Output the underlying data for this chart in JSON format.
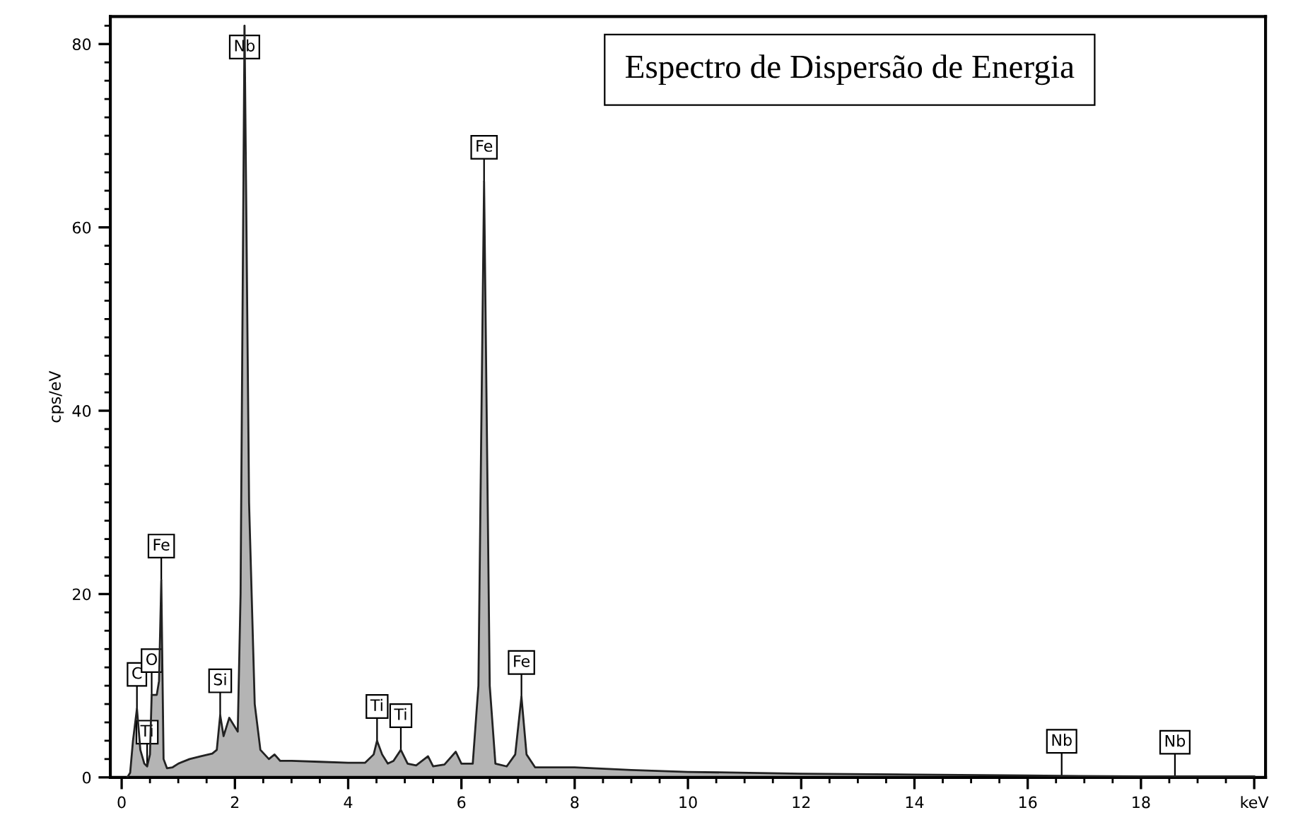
{
  "chart_data": {
    "type": "area",
    "title": "Espectro de Dispersão de Energia",
    "ylabel": "cps/eV",
    "x": [
      0.1,
      0.15,
      0.2,
      0.27,
      0.33,
      0.4,
      0.45,
      0.5,
      0.53,
      0.62,
      0.66,
      0.7,
      0.74,
      0.8,
      0.9,
      1.0,
      1.2,
      1.4,
      1.6,
      1.68,
      1.74,
      1.8,
      1.9,
      2.0,
      2.05,
      2.1,
      2.17,
      2.25,
      2.35,
      2.45,
      2.6,
      2.7,
      2.8,
      3.0,
      3.5,
      4.0,
      4.3,
      4.45,
      4.51,
      4.6,
      4.7,
      4.8,
      4.93,
      5.05,
      5.2,
      5.41,
      5.5,
      5.7,
      5.9,
      6.0,
      6.2,
      6.3,
      6.4,
      6.5,
      6.6,
      6.8,
      6.95,
      7.06,
      7.15,
      7.3,
      8,
      9,
      10,
      12,
      14,
      16,
      18,
      20
    ],
    "series": [
      {
        "color": "#b4b4b4",
        "values": [
          0,
          0.5,
          4,
          7.5,
          3,
          1.5,
          1.2,
          2.5,
          9,
          9,
          10.5,
          21.5,
          2,
          1,
          1.1,
          1.5,
          2.0,
          2.3,
          2.6,
          3.0,
          6.8,
          4.5,
          6.5,
          5.5,
          5,
          20,
          82,
          30,
          8,
          3,
          2.0,
          2.5,
          1.8,
          1.8,
          1.7,
          1.6,
          1.6,
          2.5,
          4.0,
          2.5,
          1.5,
          1.8,
          3.0,
          1.5,
          1.3,
          2.3,
          1.2,
          1.4,
          2.8,
          1.5,
          1.5,
          10,
          65,
          10,
          1.5,
          1.2,
          2.5,
          8.8,
          2.5,
          1.1,
          1.1,
          0.8,
          0.6,
          0.4,
          0.3,
          0.2,
          0.1,
          0.1
        ]
      }
    ],
    "xlim": [
      -0.2,
      20.2
    ],
    "ylim": [
      0,
      83
    ],
    "xticks": [
      0,
      2,
      4,
      6,
      8,
      10,
      12,
      14,
      16,
      18,
      {
        "value": 20,
        "label": "keV"
      }
    ],
    "yticks": [
      0,
      20,
      40,
      60,
      80
    ],
    "annotations": [
      {
        "text": "C",
        "x": 0.27,
        "y": 7.5
      },
      {
        "text": "Ti",
        "x": 0.45,
        "y": 1.2
      },
      {
        "text": "O",
        "x": 0.53,
        "y": 9
      },
      {
        "text": "Fe",
        "x": 0.7,
        "y": 21.5
      },
      {
        "text": "Si",
        "x": 1.74,
        "y": 6.8
      },
      {
        "text": "Nb",
        "x": 2.17,
        "y": 82
      },
      {
        "text": "Ti",
        "x": 4.51,
        "y": 4.0
      },
      {
        "text": "Ti",
        "x": 4.93,
        "y": 3.0
      },
      {
        "text": "Fe",
        "x": 6.4,
        "y": 65
      },
      {
        "text": "Fe",
        "x": 7.06,
        "y": 8.8
      },
      {
        "text": "Nb",
        "x": 16.6,
        "y": 0.2
      },
      {
        "text": "Nb",
        "x": 18.6,
        "y": 0.1
      }
    ]
  }
}
